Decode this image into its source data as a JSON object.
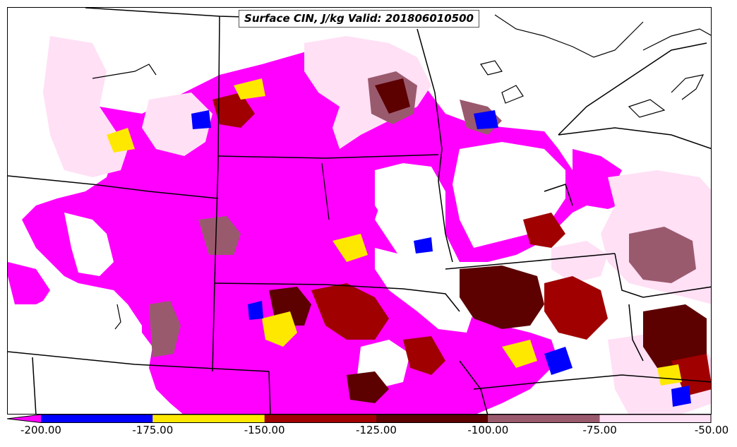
{
  "title": "Surface CIN, J/kg Valid: 201806010500",
  "colorbar": {
    "bins": [
      {
        "from": -200,
        "to": -175,
        "color": "#0000ff"
      },
      {
        "from": -175,
        "to": -150,
        "color": "#ffe800"
      },
      {
        "from": -150,
        "to": -125,
        "color": "#a00000"
      },
      {
        "from": -125,
        "to": -100,
        "color": "#5c0000"
      },
      {
        "from": -100,
        "to": -75,
        "color": "#9a5a6e"
      },
      {
        "from": -75,
        "to": -50,
        "color": "#ffe0f5"
      }
    ],
    "under_color": "#ff00ff",
    "labels": [
      "-200.00",
      "-175.00",
      "-150.00",
      "-125.00",
      "-100.00",
      "-75.00",
      "-50.00"
    ]
  },
  "colors": {
    "lowest_cin": "#ff00ff",
    "state_borders": "#000000",
    "background": "#ffffff"
  }
}
